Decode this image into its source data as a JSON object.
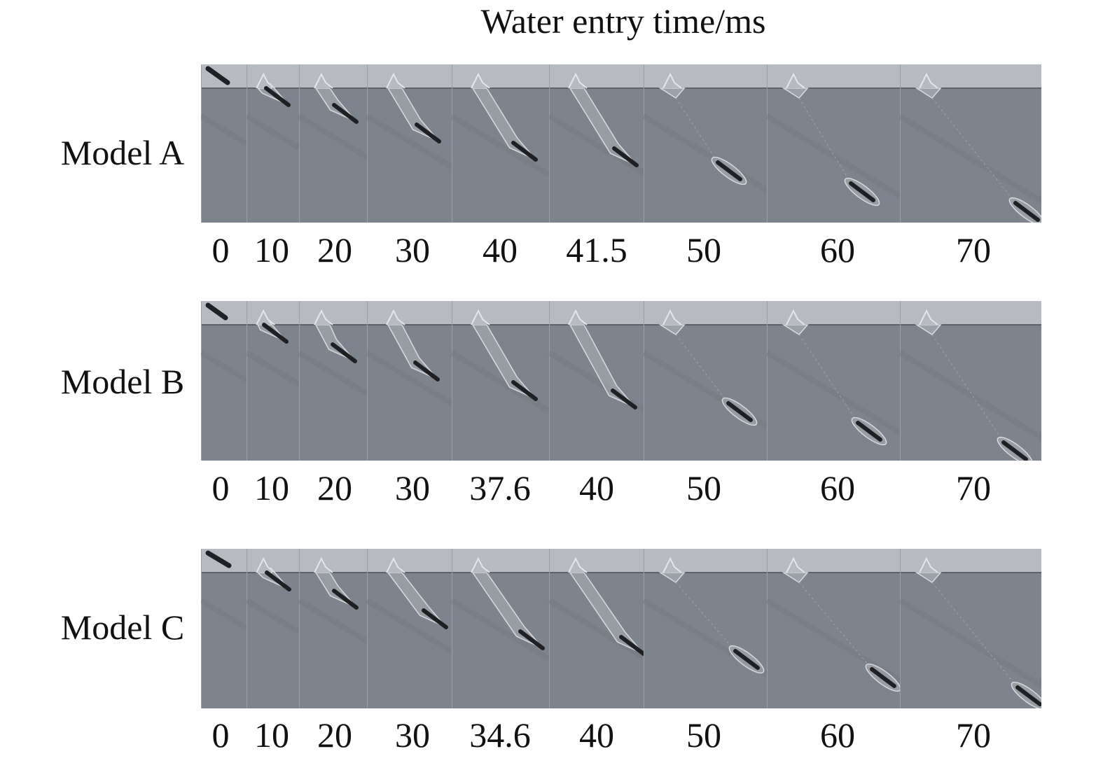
{
  "figure": {
    "title": "Water entry time/ms"
  },
  "rows": [
    {
      "label": "Model A",
      "times": [
        "0",
        "10",
        "20",
        "30",
        "40",
        "41.5",
        "50",
        "60",
        "70"
      ],
      "colors": {
        "air": "#b7bac0",
        "water": "#7e848d",
        "body": "#1e2023",
        "cavity": "#c9ccd1"
      }
    },
    {
      "label": "Model B",
      "times": [
        "0",
        "10",
        "20",
        "30",
        "37.6",
        "40",
        "50",
        "60",
        "70"
      ],
      "colors": {
        "air": "#b7bac0",
        "water": "#7e848d",
        "body": "#1e2023",
        "cavity": "#c9ccd1"
      }
    },
    {
      "label": "Model C",
      "times": [
        "0",
        "10",
        "20",
        "30",
        "34.6",
        "40",
        "50",
        "60",
        "70"
      ],
      "colors": {
        "air": "#b7bac0",
        "water": "#7e848d",
        "body": "#1e2023",
        "cavity": "#c9ccd1"
      }
    }
  ]
}
